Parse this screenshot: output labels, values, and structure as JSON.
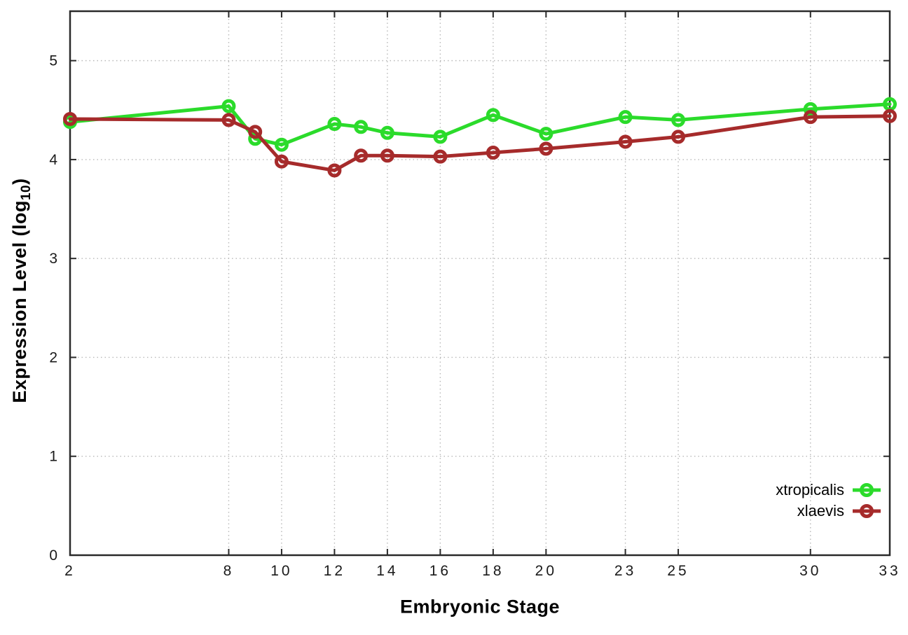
{
  "figure": {
    "background": "#ffffff",
    "border_color": "#2a2a2a",
    "grid_color": "#b8b8b8",
    "text_color": "#1a1a1a"
  },
  "chart_data": {
    "type": "line",
    "title": "",
    "xlabel": "Embryonic Stage",
    "ylabel": {
      "text": "Expression Level (log",
      "sub": "10",
      "suffix": ")"
    },
    "xlim": [
      2,
      33
    ],
    "ylim": [
      0,
      5.5
    ],
    "x_ticks": [
      2,
      8,
      10,
      12,
      14,
      16,
      18,
      20,
      23,
      25,
      30,
      33
    ],
    "y_ticks": [
      0,
      1,
      2,
      3,
      4,
      5
    ],
    "grid": true,
    "legend_position": "inside-right-lower",
    "marker": "open-circle",
    "x": [
      2,
      8,
      9,
      10,
      12,
      13,
      14,
      16,
      18,
      20,
      23,
      25,
      30,
      33
    ],
    "series": [
      {
        "name": "xtropicalis",
        "color": "#2bdb2b",
        "values": [
          4.38,
          4.54,
          4.21,
          4.15,
          4.36,
          4.33,
          4.27,
          4.23,
          4.45,
          4.26,
          4.43,
          4.4,
          4.51,
          4.56
        ]
      },
      {
        "name": "xlaevis",
        "color": "#a62b2b",
        "values": [
          4.41,
          4.4,
          4.28,
          3.98,
          3.89,
          4.04,
          4.04,
          4.03,
          4.07,
          4.11,
          4.18,
          4.23,
          4.43,
          4.44
        ]
      }
    ]
  }
}
